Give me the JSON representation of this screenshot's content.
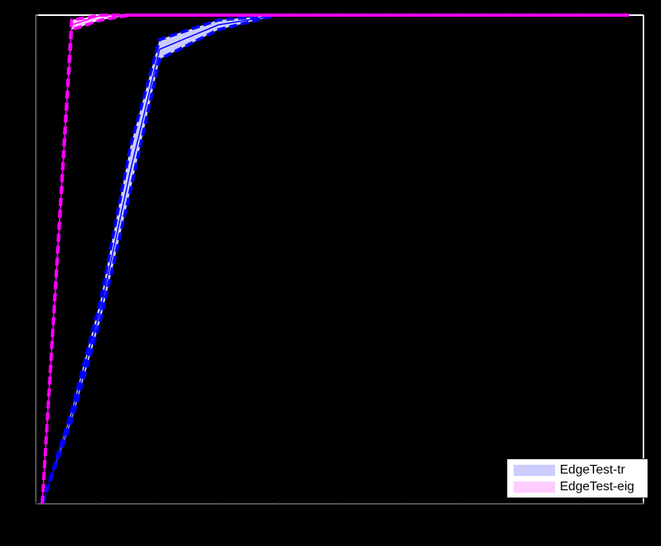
{
  "chart_data": {
    "type": "line",
    "title": "",
    "xlabel": "",
    "ylabel": "",
    "background": "#000000",
    "grid": false,
    "legend_position": "lower right",
    "x_tick_count": 11,
    "y_tick_count": 11,
    "tick_labels_visible": false,
    "xlim": [
      0,
      10
    ],
    "ylim": [
      0,
      1
    ],
    "x": [
      0,
      0.5,
      1,
      1.5,
      2,
      3,
      4,
      5,
      6,
      7,
      8,
      9,
      10
    ],
    "series": [
      {
        "name": "EdgeTest-tr",
        "line_color": "#0000ff",
        "band_color": "#ccccff",
        "mean": [
          0.0,
          0.18,
          0.4,
          0.68,
          0.93,
          0.98,
          1.0,
          1.0,
          1.0,
          1.0,
          1.0,
          1.0,
          1.0
        ],
        "lower": [
          0.0,
          0.17,
          0.38,
          0.64,
          0.91,
          0.97,
          1.0,
          1.0,
          1.0,
          1.0,
          1.0,
          1.0,
          1.0
        ],
        "upper": [
          0.0,
          0.19,
          0.42,
          0.73,
          0.95,
          0.99,
          1.0,
          1.0,
          1.0,
          1.0,
          1.0,
          1.0,
          1.0
        ]
      },
      {
        "name": "EdgeTest-eig",
        "line_color": "#ff00ff",
        "band_color": "#ffccff",
        "mean": [
          0.0,
          0.98,
          1.0,
          1.0,
          1.0,
          1.0,
          1.0,
          1.0,
          1.0,
          1.0,
          1.0,
          1.0,
          1.0
        ],
        "lower": [
          0.0,
          0.97,
          0.99,
          1.0,
          1.0,
          1.0,
          1.0,
          1.0,
          1.0,
          1.0,
          1.0,
          1.0,
          1.0
        ],
        "upper": [
          0.0,
          0.99,
          1.0,
          1.0,
          1.0,
          1.0,
          1.0,
          1.0,
          1.0,
          1.0,
          1.0,
          1.0,
          1.0
        ]
      }
    ]
  },
  "legend": {
    "items": [
      {
        "label": "EdgeTest-tr",
        "color": "#ccccff"
      },
      {
        "label": "EdgeTest-eig",
        "color": "#ffccff"
      }
    ]
  }
}
